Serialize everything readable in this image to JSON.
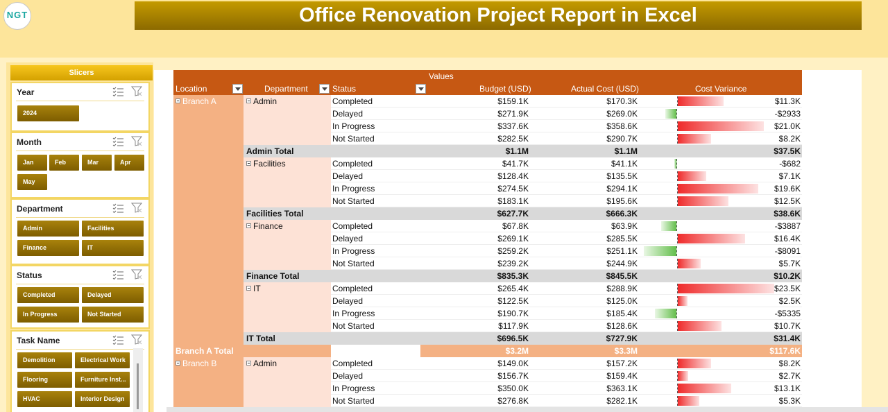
{
  "title": "Office Renovation Project Report in Excel",
  "logo_text": "NGT",
  "slicers": {
    "header": "Slicers",
    "year": {
      "title": "Year",
      "items": [
        "2024"
      ]
    },
    "month": {
      "title": "Month",
      "items": [
        "Jan",
        "Feb",
        "Mar",
        "Apr",
        "May"
      ]
    },
    "department": {
      "title": "Department",
      "items": [
        "Admin",
        "Facilities",
        "Finance",
        "IT"
      ]
    },
    "status": {
      "title": "Status",
      "items": [
        "Completed",
        "Delayed",
        "In Progress",
        "Not Started"
      ]
    },
    "task": {
      "title": "Task Name",
      "items": [
        "Demolition",
        "Electrical Work",
        "Flooring",
        "Furniture Inst...",
        "HVAC",
        "Interior Design"
      ]
    }
  },
  "pivot": {
    "values_label": "Values",
    "headers": {
      "location": "Location",
      "department": "Department",
      "status": "Status",
      "budget": "Budget (USD)",
      "actual": "Actual Cost (USD)",
      "variance": "Cost Variance"
    },
    "rows": [
      {
        "loc": "Branch A",
        "dept": "Admin",
        "status": "Completed",
        "budget": "$159.1K",
        "actual": "$170.3K",
        "var": "$11.3K",
        "v": 11.3
      },
      {
        "status": "Delayed",
        "budget": "$271.9K",
        "actual": "$269.0K",
        "var": "-$2933",
        "v": -2.933
      },
      {
        "status": "In Progress",
        "budget": "$337.6K",
        "actual": "$358.6K",
        "var": "$21.0K",
        "v": 21.0
      },
      {
        "status": "Not Started",
        "budget": "$282.5K",
        "actual": "$290.7K",
        "var": "$8.2K",
        "v": 8.2
      },
      {
        "total": "Admin Total",
        "budget": "$1.1M",
        "actual": "$1.1M",
        "var": "$37.5K"
      },
      {
        "dept": "Facilities",
        "status": "Completed",
        "budget": "$41.7K",
        "actual": "$41.1K",
        "var": "-$682",
        "v": -0.682
      },
      {
        "status": "Delayed",
        "budget": "$128.4K",
        "actual": "$135.5K",
        "var": "$7.1K",
        "v": 7.1
      },
      {
        "status": "In Progress",
        "budget": "$274.5K",
        "actual": "$294.1K",
        "var": "$19.6K",
        "v": 19.6
      },
      {
        "status": "Not Started",
        "budget": "$183.1K",
        "actual": "$195.6K",
        "var": "$12.5K",
        "v": 12.5
      },
      {
        "total": "Facilities Total",
        "budget": "$627.7K",
        "actual": "$666.3K",
        "var": "$38.6K"
      },
      {
        "dept": "Finance",
        "status": "Completed",
        "budget": "$67.8K",
        "actual": "$63.9K",
        "var": "-$3887",
        "v": -3.887
      },
      {
        "status": "Delayed",
        "budget": "$269.1K",
        "actual": "$285.5K",
        "var": "$16.4K",
        "v": 16.4
      },
      {
        "status": "In Progress",
        "budget": "$259.2K",
        "actual": "$251.1K",
        "var": "-$8091",
        "v": -8.091
      },
      {
        "status": "Not Started",
        "budget": "$239.2K",
        "actual": "$244.9K",
        "var": "$5.7K",
        "v": 5.7
      },
      {
        "total": "Finance Total",
        "budget": "$835.3K",
        "actual": "$845.5K",
        "var": "$10.2K"
      },
      {
        "dept": "IT",
        "status": "Completed",
        "budget": "$265.4K",
        "actual": "$288.9K",
        "var": "$23.5K",
        "v": 23.5
      },
      {
        "status": "Delayed",
        "budget": "$122.5K",
        "actual": "$125.0K",
        "var": "$2.5K",
        "v": 2.5
      },
      {
        "status": "In Progress",
        "budget": "$190.7K",
        "actual": "$185.4K",
        "var": "-$5335",
        "v": -5.335
      },
      {
        "status": "Not Started",
        "budget": "$117.9K",
        "actual": "$128.6K",
        "var": "$10.7K",
        "v": 10.7
      },
      {
        "total": "IT Total",
        "budget": "$696.5K",
        "actual": "$727.9K",
        "var": "$31.4K"
      },
      {
        "btotal": "Branch A Total",
        "budget": "$3.2M",
        "actual": "$3.3M",
        "var": "$117.6K"
      },
      {
        "loc": "Branch B",
        "dept": "Admin",
        "status": "Completed",
        "budget": "$149.0K",
        "actual": "$157.2K",
        "var": "$8.2K",
        "v": 8.2
      },
      {
        "status": "Delayed",
        "budget": "$156.7K",
        "actual": "$159.4K",
        "var": "$2.7K",
        "v": 2.7
      },
      {
        "status": "In Progress",
        "budget": "$350.0K",
        "actual": "$363.1K",
        "var": "$13.1K",
        "v": 13.1
      },
      {
        "status": "Not Started",
        "budget": "$276.8K",
        "actual": "$282.1K",
        "var": "$5.3K",
        "v": 5.3
      }
    ]
  }
}
